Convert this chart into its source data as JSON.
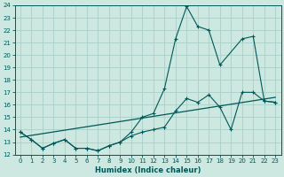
{
  "xlabel": "Humidex (Indice chaleur)",
  "xlim": [
    -0.5,
    23.5
  ],
  "ylim": [
    12,
    24
  ],
  "yticks": [
    12,
    13,
    14,
    15,
    16,
    17,
    18,
    19,
    20,
    21,
    22,
    23,
    24
  ],
  "xticks": [
    0,
    1,
    2,
    3,
    4,
    5,
    6,
    7,
    8,
    9,
    10,
    11,
    12,
    13,
    14,
    15,
    16,
    17,
    18,
    19,
    20,
    21,
    22,
    23
  ],
  "background_color": "#cce8e0",
  "grid_color": "#aacfc8",
  "line_color": "#005858",
  "curve_spike_x": [
    0,
    1,
    2,
    3,
    4,
    5,
    6,
    7,
    8,
    9,
    10,
    11,
    12,
    13,
    14,
    15,
    16,
    17,
    18,
    20,
    21,
    22,
    23
  ],
  "curve_spike_y": [
    13.8,
    13.2,
    12.5,
    12.9,
    13.2,
    12.5,
    12.5,
    12.3,
    12.7,
    13.0,
    13.8,
    15.0,
    15.3,
    17.3,
    21.3,
    23.9,
    22.3,
    22.0,
    19.2,
    21.3,
    21.5,
    16.3,
    16.2
  ],
  "curve_flat_x": [
    0,
    1,
    2,
    3,
    4,
    5,
    6,
    7,
    8,
    9,
    10,
    11,
    12,
    13,
    14,
    15,
    16,
    17,
    18,
    19,
    20,
    21,
    22,
    23
  ],
  "curve_flat_y": [
    13.8,
    13.2,
    12.5,
    12.9,
    13.2,
    12.5,
    12.5,
    12.3,
    12.7,
    13.0,
    13.5,
    13.8,
    14.0,
    14.2,
    15.5,
    16.5,
    16.2,
    16.8,
    15.8,
    14.0,
    17.0,
    17.0,
    16.3,
    16.2
  ],
  "trend_x": [
    0,
    23
  ],
  "trend_y": [
    13.4,
    16.6
  ]
}
